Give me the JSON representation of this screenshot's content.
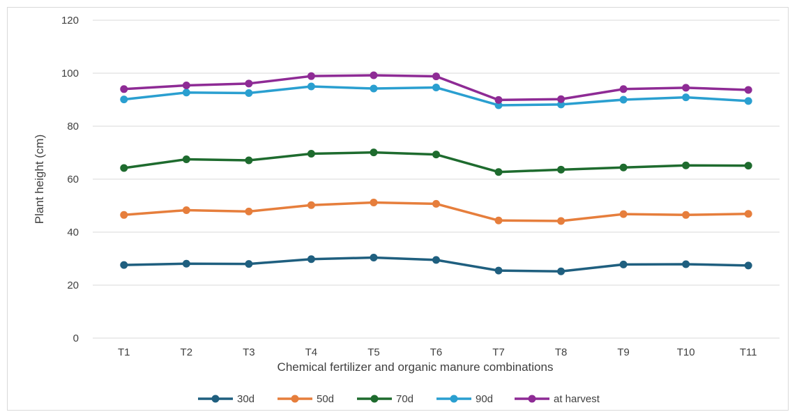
{
  "chart_data": {
    "type": "line",
    "title": "",
    "xlabel": "Chemical fertilizer and organic manure combinations",
    "ylabel": "Plant height (cm)",
    "ylim": [
      0,
      120
    ],
    "yticks": [
      0,
      20,
      40,
      60,
      80,
      100,
      120
    ],
    "grid": true,
    "legend_position": "bottom",
    "categories": [
      "T1",
      "T2",
      "T3",
      "T4",
      "T5",
      "T6",
      "T7",
      "T8",
      "T9",
      "T10",
      "T11"
    ],
    "series": [
      {
        "name": "30d",
        "color": "#1f5f7f",
        "values": [
          27.6,
          28.1,
          28.0,
          29.8,
          30.4,
          29.5,
          25.5,
          25.2,
          27.8,
          27.9,
          27.4
        ]
      },
      {
        "name": "50d",
        "color": "#e67e3c",
        "values": [
          46.5,
          48.3,
          47.8,
          50.2,
          51.2,
          50.7,
          44.4,
          44.2,
          46.8,
          46.5,
          46.9
        ]
      },
      {
        "name": "70d",
        "color": "#1e6b2e",
        "values": [
          64.2,
          67.5,
          67.1,
          69.6,
          70.1,
          69.3,
          62.7,
          63.6,
          64.4,
          65.2,
          65.1
        ]
      },
      {
        "name": "90d",
        "color": "#2a9fd0",
        "values": [
          90.1,
          92.7,
          92.5,
          95.0,
          94.2,
          94.6,
          87.9,
          88.2,
          90.0,
          90.9,
          89.5
        ]
      },
      {
        "name": "at harvest",
        "color": "#8e2b95",
        "values": [
          94.0,
          95.4,
          96.1,
          98.9,
          99.2,
          98.8,
          89.9,
          90.2,
          94.0,
          94.5,
          93.7
        ]
      }
    ]
  }
}
